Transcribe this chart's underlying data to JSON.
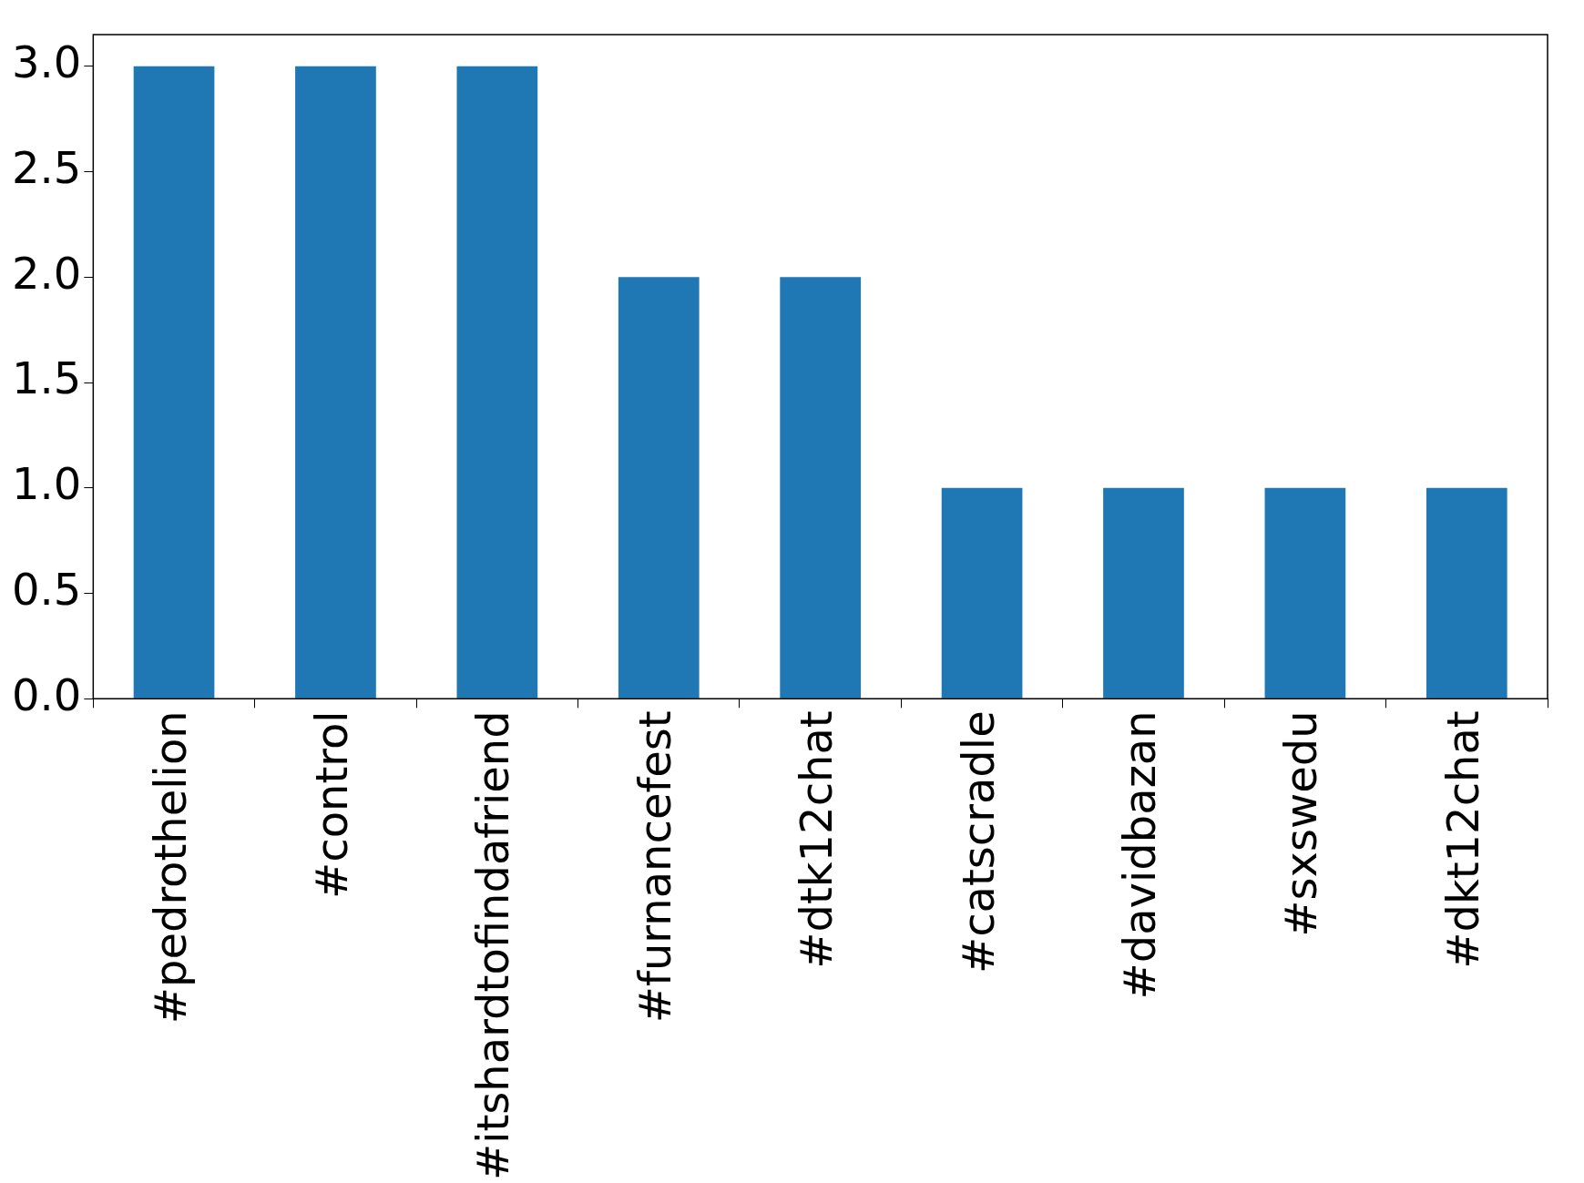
{
  "chart_data": {
    "type": "bar",
    "categories": [
      "#pedrothelion",
      "#control",
      "#itshardtofindafriend",
      "#furnancefest",
      "#dtk12chat",
      "#catscradle",
      "#davidbazan",
      "#sxswedu",
      "#dkt12chat"
    ],
    "values": [
      3,
      3,
      3,
      2,
      2,
      1,
      1,
      1,
      1
    ],
    "color": "#1f77b4",
    "ylim": [
      0,
      3.15
    ],
    "yticks": [
      {
        "value": 0,
        "label": "0.0"
      },
      {
        "value": 0.5,
        "label": "0.5"
      },
      {
        "value": 1,
        "label": "1.0"
      },
      {
        "value": 1.5,
        "label": "1.5"
      },
      {
        "value": 2,
        "label": "2.0"
      },
      {
        "value": 2.5,
        "label": "2.5"
      },
      {
        "value": 3,
        "label": "3.0"
      }
    ],
    "grid": false,
    "legend": false
  }
}
